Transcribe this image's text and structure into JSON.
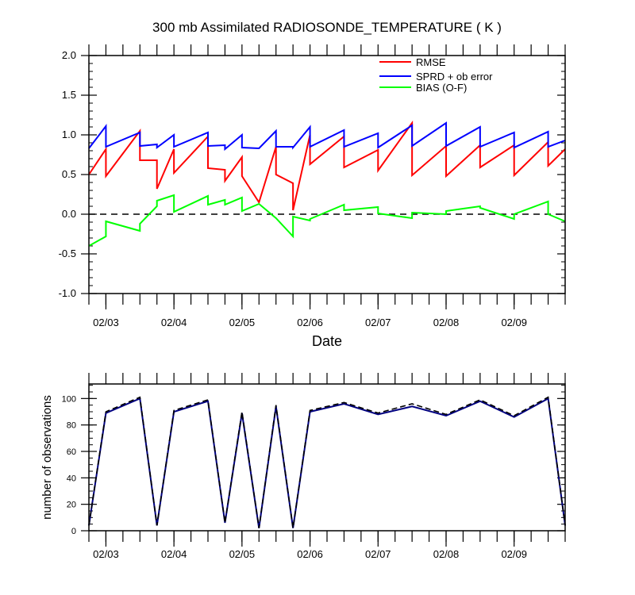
{
  "chart_data": [
    {
      "type": "line",
      "title": "300 mb Assimilated RADIOSONDE_TEMPERATURE ( K )",
      "xlabel": "Date",
      "ylabel": "",
      "xlim": [
        2.75,
        9.75
      ],
      "ylim": [
        -1.0,
        2.0
      ],
      "yticks": [
        2.0,
        1.5,
        1.0,
        0.5,
        0.0,
        -0.5,
        -1.0
      ],
      "ytick_labels": [
        "2.0",
        "1.5",
        "1.0",
        "0.5",
        "0.0",
        "-0.5",
        "-1.0"
      ],
      "xticks": [
        3,
        4,
        5,
        6,
        7,
        8,
        9
      ],
      "xtick_labels": [
        "02/03",
        "02/04",
        "02/05",
        "02/06",
        "02/07",
        "02/08",
        "02/09"
      ],
      "zero_line": "dashed",
      "legend_position": "top-right",
      "series": [
        {
          "name": "RMSE",
          "color": "#ff0000",
          "points": [
            [
              2.75,
              0.5
            ],
            [
              3.0,
              0.82
            ],
            [
              3.0,
              0.48
            ],
            [
              3.5,
              1.05
            ],
            [
              3.5,
              0.68
            ],
            [
              3.75,
              0.68
            ],
            [
              3.75,
              0.32
            ],
            [
              4.0,
              0.82
            ],
            [
              4.0,
              0.52
            ],
            [
              4.5,
              0.98
            ],
            [
              4.5,
              0.58
            ],
            [
              4.75,
              0.56
            ],
            [
              4.75,
              0.42
            ],
            [
              5.0,
              0.72
            ],
            [
              5.0,
              0.48
            ],
            [
              5.25,
              0.15
            ],
            [
              5.5,
              0.85
            ],
            [
              5.5,
              0.5
            ],
            [
              5.75,
              0.39
            ],
            [
              5.75,
              0.05
            ],
            [
              6.0,
              1.0
            ],
            [
              6.0,
              0.63
            ],
            [
              6.5,
              0.98
            ],
            [
              6.5,
              0.59
            ],
            [
              7.0,
              0.81
            ],
            [
              7.0,
              0.55
            ],
            [
              7.5,
              1.15
            ],
            [
              7.5,
              0.49
            ],
            [
              8.0,
              0.86
            ],
            [
              8.0,
              0.48
            ],
            [
              8.5,
              0.87
            ],
            [
              8.5,
              0.59
            ],
            [
              9.0,
              0.87
            ],
            [
              9.0,
              0.49
            ],
            [
              9.5,
              0.91
            ],
            [
              9.5,
              0.61
            ],
            [
              9.75,
              0.82
            ]
          ]
        },
        {
          "name": "SPRD + ob error",
          "color": "#0000ff",
          "points": [
            [
              2.75,
              0.83
            ],
            [
              3.0,
              1.11
            ],
            [
              3.0,
              0.85
            ],
            [
              3.5,
              1.03
            ],
            [
              3.5,
              0.86
            ],
            [
              3.75,
              0.88
            ],
            [
              3.75,
              0.84
            ],
            [
              4.0,
              1.0
            ],
            [
              4.0,
              0.85
            ],
            [
              4.5,
              1.03
            ],
            [
              4.5,
              0.86
            ],
            [
              4.75,
              0.87
            ],
            [
              4.75,
              0.82
            ],
            [
              5.0,
              1.0
            ],
            [
              5.0,
              0.84
            ],
            [
              5.25,
              0.83
            ],
            [
              5.5,
              1.05
            ],
            [
              5.5,
              0.85
            ],
            [
              5.75,
              0.85
            ],
            [
              5.75,
              0.84
            ],
            [
              6.0,
              1.1
            ],
            [
              6.0,
              0.85
            ],
            [
              6.5,
              1.06
            ],
            [
              6.5,
              0.85
            ],
            [
              7.0,
              1.02
            ],
            [
              7.0,
              0.84
            ],
            [
              7.5,
              1.12
            ],
            [
              7.5,
              0.86
            ],
            [
              8.0,
              1.15
            ],
            [
              8.0,
              0.86
            ],
            [
              8.5,
              1.1
            ],
            [
              8.5,
              0.85
            ],
            [
              9.0,
              1.03
            ],
            [
              9.0,
              0.84
            ],
            [
              9.5,
              1.04
            ],
            [
              9.5,
              0.85
            ],
            [
              9.75,
              0.93
            ]
          ]
        },
        {
          "name": "BIAS (O-F)",
          "color": "#00ff00",
          "points": [
            [
              2.75,
              -0.4
            ],
            [
              3.0,
              -0.28
            ],
            [
              3.0,
              -0.09
            ],
            [
              3.5,
              -0.21
            ],
            [
              3.5,
              -0.12
            ],
            [
              3.75,
              0.1
            ],
            [
              3.75,
              0.17
            ],
            [
              4.0,
              0.24
            ],
            [
              4.0,
              0.03
            ],
            [
              4.5,
              0.23
            ],
            [
              4.5,
              0.12
            ],
            [
              4.75,
              0.18
            ],
            [
              4.75,
              0.12
            ],
            [
              5.0,
              0.21
            ],
            [
              5.0,
              0.04
            ],
            [
              5.25,
              0.13
            ],
            [
              5.5,
              -0.05
            ],
            [
              5.75,
              -0.28
            ],
            [
              5.75,
              -0.03
            ],
            [
              6.0,
              -0.08
            ],
            [
              6.0,
              -0.06
            ],
            [
              6.5,
              0.12
            ],
            [
              6.5,
              0.05
            ],
            [
              7.0,
              0.09
            ],
            [
              7.0,
              0.01
            ],
            [
              7.5,
              -0.05
            ],
            [
              7.5,
              0.02
            ],
            [
              8.0,
              0.0
            ],
            [
              8.0,
              0.04
            ],
            [
              8.5,
              0.1
            ],
            [
              8.5,
              0.08
            ],
            [
              9.0,
              -0.06
            ],
            [
              9.0,
              0.0
            ],
            [
              9.5,
              0.16
            ],
            [
              9.5,
              0.0
            ],
            [
              9.75,
              -0.09
            ]
          ]
        }
      ]
    },
    {
      "type": "line",
      "title": "",
      "xlabel": "",
      "ylabel": "number of observations",
      "xlim": [
        2.75,
        9.75
      ],
      "ylim": [
        0,
        111
      ],
      "yticks": [
        0,
        20,
        40,
        60,
        80,
        100
      ],
      "ytick_labels": [
        "0",
        "20",
        "40",
        "60",
        "80",
        "100"
      ],
      "xticks": [
        3,
        4,
        5,
        6,
        7,
        8,
        9
      ],
      "xtick_labels": [
        "02/03",
        "02/04",
        "02/05",
        "02/06",
        "02/07",
        "02/08",
        "02/09"
      ],
      "series": [
        {
          "name": "observations (solid)",
          "color": "#000080",
          "style": "solid",
          "x": [
            2.75,
            3.0,
            3.5,
            3.75,
            4.0,
            4.5,
            4.75,
            5.0,
            5.25,
            5.5,
            5.75,
            6.0,
            6.5,
            7.0,
            7.5,
            8.0,
            8.5,
            9.0,
            9.5,
            9.75
          ],
          "values": [
            4,
            89,
            100,
            4,
            90,
            98,
            6,
            89,
            2,
            94,
            2,
            90,
            96,
            88,
            94,
            87,
            98,
            86,
            100,
            4
          ]
        },
        {
          "name": "observations (dashed)",
          "color": "#000000",
          "style": "dashed",
          "x": [
            2.75,
            3.0,
            3.5,
            3.75,
            4.0,
            4.5,
            4.75,
            5.0,
            5.25,
            5.5,
            5.75,
            6.0,
            6.5,
            7.0,
            7.5,
            8.0,
            8.5,
            9.0,
            9.5,
            9.75
          ],
          "values": [
            4,
            90,
            101,
            4,
            91,
            99,
            6,
            90,
            2,
            95,
            2,
            91,
            97,
            89,
            96,
            88,
            99,
            87,
            101,
            4
          ]
        }
      ]
    }
  ]
}
